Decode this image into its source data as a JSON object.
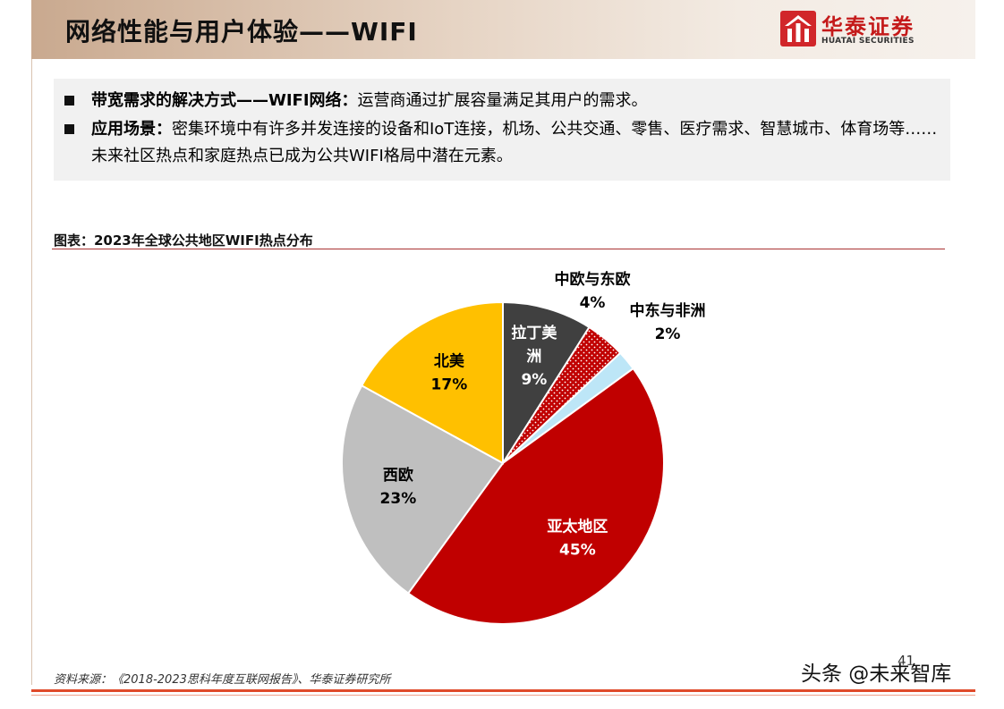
{
  "header": {
    "title": "网络性能与用户体验——WIFI",
    "logo_cn": "华泰证券",
    "logo_en": "HUATAI SECURITIES"
  },
  "info": {
    "bullet1_label": "带宽需求的解决方式——WIFI网络：",
    "bullet1_text": "运营商通过扩展容量满足其用户的需求。",
    "bullet2_label": "应用场景：",
    "bullet2_text": "密集环境中有许多并发连接的设备和IoT连接，机场、公共交通、零售、医疗需求、智慧城市、体育场等……未来社区热点和家庭热点已成为公共WIFI格局中潜在元素。"
  },
  "figure_title": "图表：2023年全球公共地区WIFI热点分布",
  "chart_data": {
    "type": "pie",
    "title": "2023年全球公共地区WIFI热点分布",
    "start": "12 o'clock",
    "direction": "clockwise",
    "slices": [
      {
        "name": "拉丁美洲",
        "value": 9,
        "label_lines": [
          "拉丁美",
          "洲"
        ],
        "pct_label": "9%",
        "color": "#404040",
        "text_color": "#ffffff"
      },
      {
        "name": "中欧与东欧",
        "value": 4,
        "label_lines": [
          "中欧与东欧"
        ],
        "pct_label": "4%",
        "color": "#c00000",
        "pattern": "dots",
        "text_color": "#000000"
      },
      {
        "name": "中东与非洲",
        "value": 2,
        "label_lines": [
          "中东与非洲"
        ],
        "pct_label": "2%",
        "color": "#bde6f7",
        "text_color": "#000000"
      },
      {
        "name": "亚太地区",
        "value": 45,
        "label_lines": [
          "亚太地区"
        ],
        "pct_label": "45%",
        "color": "#c00000",
        "text_color": "#ffffff"
      },
      {
        "name": "西欧",
        "value": 23,
        "label_lines": [
          "西欧"
        ],
        "pct_label": "23%",
        "color": "#bfbfbf",
        "text_color": "#000000"
      },
      {
        "name": "北美",
        "value": 17,
        "label_lines": [
          "北美"
        ],
        "pct_label": "17%",
        "color": "#ffc000",
        "text_color": "#000000"
      }
    ]
  },
  "footer": {
    "source": "资料来源：《2018-2023思科年度互联网报告》、华泰证券研究所",
    "page_number": "41",
    "watermark": "头条 @未来智库"
  }
}
